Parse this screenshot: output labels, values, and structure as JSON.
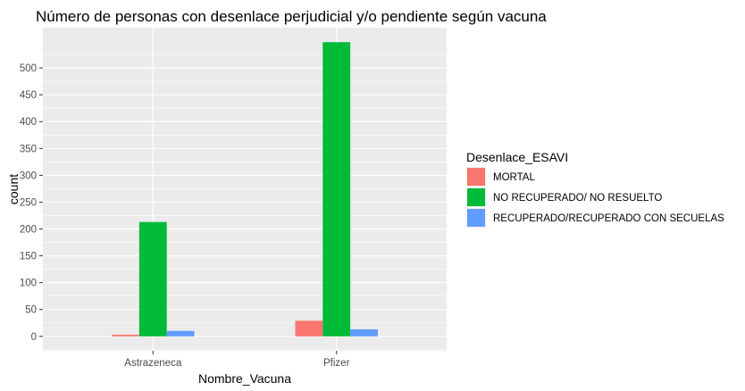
{
  "chart_data": {
    "type": "bar",
    "title": "Número de personas con desenlace perjudicial y/o pendiente según vacuna",
    "xlabel": "Nombre_Vacuna",
    "ylabel": "count",
    "categories": [
      "Astrazeneca",
      "Pfizer"
    ],
    "series": [
      {
        "name": "MORTAL",
        "color": "#F8766D",
        "values": [
          3,
          29
        ]
      },
      {
        "name": "NO RECUPERADO/ NO RESUELTO",
        "color": "#00BA38",
        "values": [
          213,
          548
        ]
      },
      {
        "name": "RECUPERADO/RECUPERADO CON SECUELAS",
        "color": "#619CFF",
        "values": [
          10,
          13
        ]
      }
    ],
    "ylim": [
      -27,
      575
    ],
    "yticks": [
      0,
      50,
      100,
      150,
      200,
      250,
      300,
      350,
      400,
      450,
      500
    ],
    "grid": true,
    "legend": {
      "title": "Desenlace_ESAVI",
      "position": "right"
    },
    "panel_background": "#EBEBEB",
    "grid_color": "#FFFFFF"
  }
}
